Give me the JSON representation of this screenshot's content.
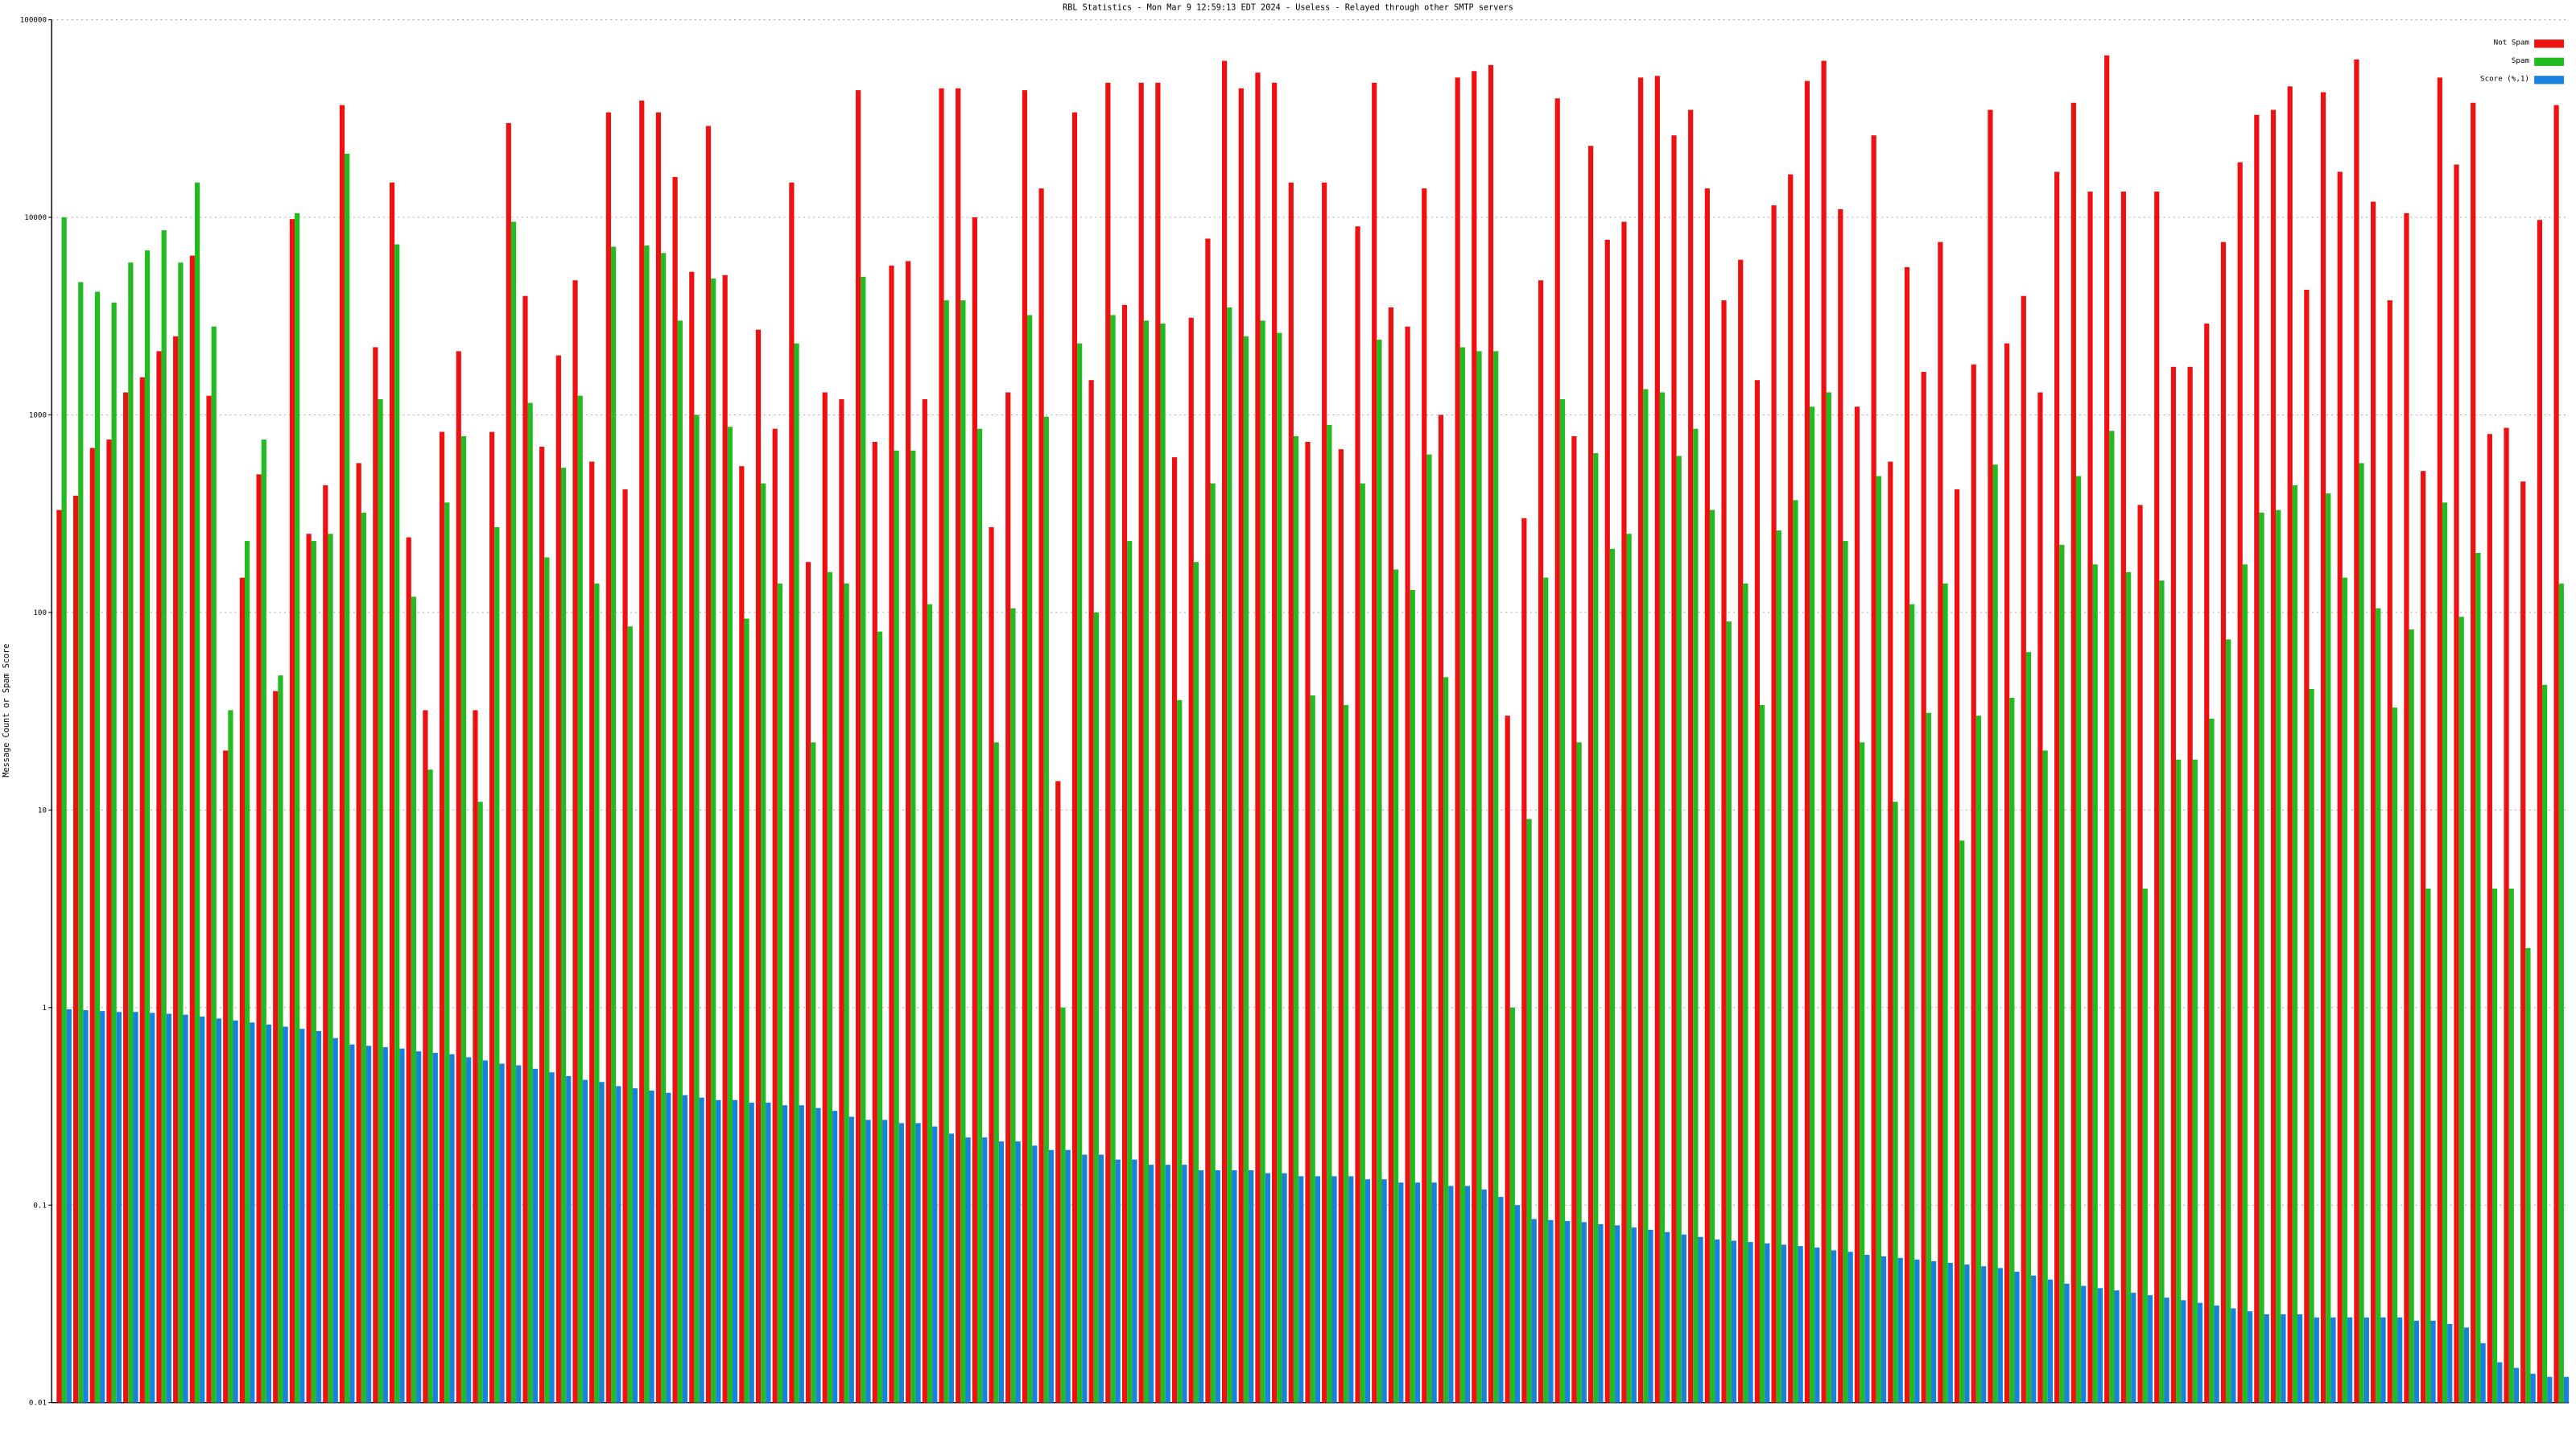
{
  "chart_data": {
    "type": "bar",
    "title": "RBL Statistics - Mon Mar  9 12:59:13 EDT 2024 - Useless - Relayed through other SMTP servers",
    "y_label": "Message Count or Spam Score",
    "log_scale": true,
    "grid": true,
    "legend": "upper right",
    "ylim": [
      0.01,
      100000
    ],
    "yticks": [
      0.01,
      0.1,
      1,
      10,
      100,
      1000,
      10000,
      100000
    ],
    "categories": [
      null,
      null,
      null,
      null,
      null,
      null,
      null,
      null,
      null,
      null,
      null,
      null,
      null,
      null,
      null,
      null,
      null,
      null,
      null,
      null,
      null,
      null,
      null,
      null,
      null,
      null,
      null,
      null,
      null,
      null,
      null,
      null,
      null,
      null,
      null,
      null,
      null,
      null,
      null,
      null,
      null,
      null,
      null,
      null,
      null,
      null,
      null,
      null,
      null,
      null,
      null,
      null,
      null,
      null,
      null,
      null,
      null,
      null,
      null,
      null,
      null,
      null,
      null,
      null,
      null,
      null,
      null,
      null,
      null,
      null,
      null,
      null,
      null,
      null,
      null,
      null,
      null,
      null,
      null,
      null,
      null,
      null,
      null,
      null,
      null,
      null,
      null,
      null,
      null,
      null,
      null,
      null,
      null,
      null,
      null,
      null,
      null,
      null,
      null,
      null,
      null,
      null,
      null,
      null,
      null,
      null,
      null,
      null,
      null,
      null,
      null,
      null,
      null,
      null,
      null,
      null,
      null,
      null,
      null,
      null,
      null,
      null,
      null,
      null,
      null,
      null,
      null,
      null,
      null,
      null,
      null,
      null,
      null,
      null,
      null,
      null,
      null,
      null,
      null,
      null,
      null,
      null,
      null,
      null,
      null,
      null,
      null,
      null,
      null,
      null,
      null
    ],
    "series": [
      {
        "name": "Not Spam",
        "color": "#ee1111",
        "values": [
          330,
          390,
          680,
          750,
          1300,
          1550,
          2100,
          2500,
          6400,
          1250,
          20,
          150,
          500,
          40,
          9800,
          250,
          440,
          37000,
          570,
          2200,
          15000,
          240,
          32,
          820,
          2100,
          32,
          820,
          30000,
          4000,
          690,
          2000,
          4800,
          580,
          34000,
          420,
          39000,
          34000,
          16000,
          5300,
          29000,
          5100,
          550,
          2700,
          850,
          15000,
          180,
          1300,
          1200,
          44000,
          730,
          5700,
          6000,
          1200,
          45000,
          45000,
          10000,
          270,
          1300,
          44000,
          14000,
          14,
          34000,
          1500,
          48000,
          3600,
          48000,
          48000,
          610,
          3100,
          7800,
          62000,
          45000,
          54000,
          48000,
          15000,
          730,
          15000,
          670,
          9000,
          48000,
          3500,
          2800,
          14000,
          1000,
          51000,
          55000,
          59000,
          30,
          300,
          4800,
          40000,
          780,
          23000,
          7700,
          9500,
          51000,
          52000,
          26000,
          35000,
          14000,
          3800,
          6100,
          1500,
          11500,
          16500,
          49000,
          62000,
          11000,
          1100,
          26000,
          580,
          5600,
          1650,
          7500,
          420,
          1800,
          35000,
          2300,
          4000,
          1300,
          17000,
          38000,
          13500,
          66000,
          13500,
          350,
          13500,
          1750,
          1750,
          2900,
          7500,
          19000,
          33000,
          35000,
          46000,
          4300,
          43000,
          17000,
          63000,
          12000,
          3800,
          10500,
          520,
          51000,
          18500,
          38000,
          800,
          860,
          460,
          9700,
          37000
        ]
      },
      {
        "name": "Spam",
        "color": "#22bb22",
        "values": [
          10000,
          4700,
          4200,
          3700,
          5900,
          6800,
          8600,
          5900,
          15000,
          2800,
          32,
          230,
          750,
          48,
          10500,
          230,
          250,
          21000,
          320,
          1200,
          7300,
          120,
          16,
          360,
          780,
          11,
          270,
          9500,
          1150,
          190,
          540,
          1250,
          140,
          7100,
          85,
          7200,
          6600,
          3000,
          1000,
          4900,
          870,
          93,
          450,
          140,
          2300,
          22,
          160,
          140,
          5000,
          80,
          660,
          660,
          110,
          3800,
          3800,
          850,
          22,
          105,
          3200,
          980,
          1,
          2300,
          100,
          3200,
          230,
          3000,
          2900,
          36,
          180,
          450,
          3500,
          2500,
          3000,
          2600,
          780,
          38,
          890,
          34,
          450,
          2400,
          165,
          130,
          630,
          47,
          2200,
          2100,
          2100,
          1,
          9,
          150,
          1200,
          22,
          640,
          210,
          250,
          1350,
          1300,
          620,
          850,
          330,
          90,
          140,
          34,
          260,
          370,
          1100,
          1300,
          230,
          22,
          490,
          11,
          110,
          31,
          140,
          7,
          30,
          560,
          37,
          63,
          20,
          220,
          490,
          175,
          830,
          160,
          4,
          145,
          18,
          18,
          29,
          73,
          175,
          320,
          330,
          440,
          41,
          400,
          150,
          570,
          105,
          33,
          82,
          4,
          360,
          95,
          200,
          4,
          4,
          2,
          43,
          140
        ]
      },
      {
        "name": "Score (%,1)",
        "color": "#1a80e0",
        "values": [
          0.98,
          0.97,
          0.96,
          0.95,
          0.95,
          0.94,
          0.93,
          0.92,
          0.9,
          0.88,
          0.86,
          0.84,
          0.82,
          0.8,
          0.78,
          0.76,
          0.7,
          0.65,
          0.64,
          0.63,
          0.62,
          0.6,
          0.59,
          0.58,
          0.56,
          0.54,
          0.52,
          0.51,
          0.49,
          0.47,
          0.45,
          0.43,
          0.42,
          0.4,
          0.39,
          0.38,
          0.37,
          0.36,
          0.35,
          0.34,
          0.34,
          0.33,
          0.33,
          0.32,
          0.32,
          0.31,
          0.3,
          0.28,
          0.27,
          0.27,
          0.26,
          0.26,
          0.25,
          0.23,
          0.22,
          0.22,
          0.21,
          0.21,
          0.2,
          0.19,
          0.19,
          0.18,
          0.18,
          0.17,
          0.17,
          0.16,
          0.16,
          0.16,
          0.15,
          0.15,
          0.15,
          0.15,
          0.145,
          0.145,
          0.14,
          0.14,
          0.14,
          0.14,
          0.135,
          0.135,
          0.13,
          0.13,
          0.13,
          0.125,
          0.125,
          0.12,
          0.11,
          0.1,
          0.085,
          0.084,
          0.083,
          0.082,
          0.08,
          0.079,
          0.077,
          0.075,
          0.073,
          0.071,
          0.069,
          0.067,
          0.066,
          0.065,
          0.064,
          0.063,
          0.062,
          0.061,
          0.059,
          0.058,
          0.056,
          0.055,
          0.054,
          0.053,
          0.052,
          0.051,
          0.05,
          0.049,
          0.048,
          0.046,
          0.044,
          0.042,
          0.04,
          0.039,
          0.038,
          0.037,
          0.036,
          0.035,
          0.034,
          0.033,
          0.032,
          0.031,
          0.03,
          0.029,
          0.028,
          0.028,
          0.028,
          0.027,
          0.027,
          0.027,
          0.027,
          0.027,
          0.027,
          0.026,
          0.026,
          0.025,
          0.024,
          0.02,
          0.016,
          0.015,
          0.014,
          0.0135,
          0.0135
        ]
      }
    ]
  }
}
